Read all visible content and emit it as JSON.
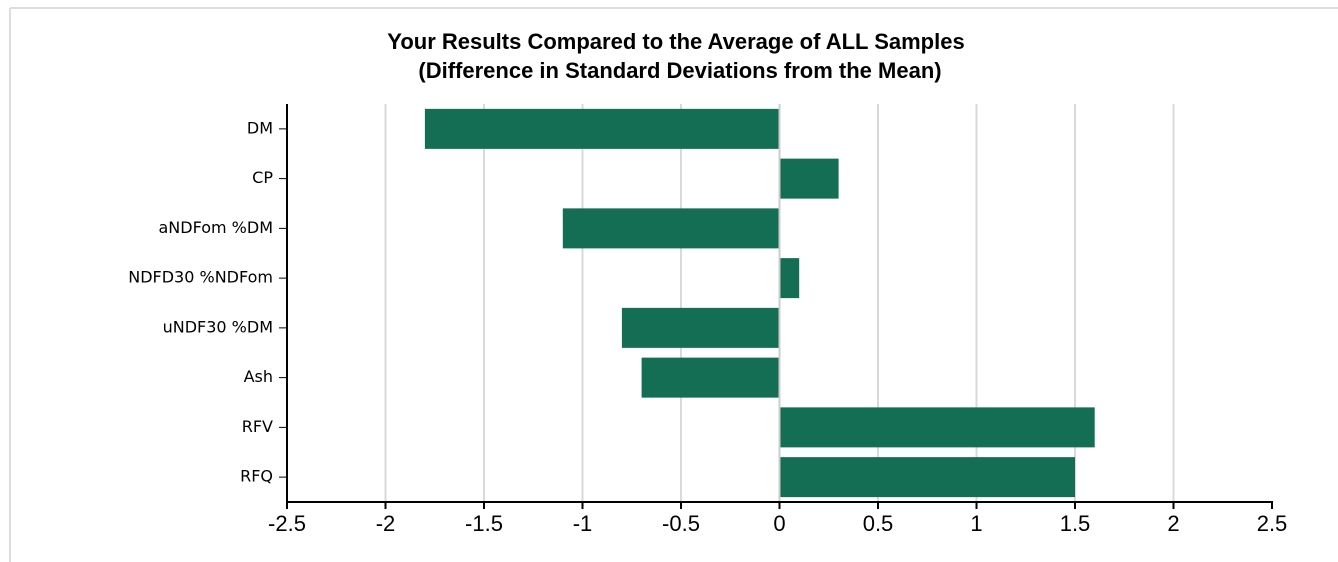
{
  "chart_data": {
    "type": "bar",
    "orientation": "horizontal",
    "title": "Your Results Compared to the Average of ALL Samples",
    "subtitle": "(Difference in Standard Deviations from the Mean)",
    "categories": [
      "DM",
      "CP",
      "aNDFom %DM",
      "NDFD30 %NDFom",
      "uNDF30 %DM",
      "Ash",
      "RFV",
      "RFQ"
    ],
    "values": [
      -1.8,
      0.3,
      -1.1,
      0.1,
      -0.8,
      -0.7,
      1.6,
      1.5
    ],
    "color": "#136e54",
    "xlim": [
      -2.5,
      2.5
    ],
    "xticks": [
      -2.5,
      -2,
      -1.5,
      -1,
      -0.5,
      0,
      0.5,
      1,
      1.5,
      2,
      2.5
    ],
    "grid": true
  }
}
